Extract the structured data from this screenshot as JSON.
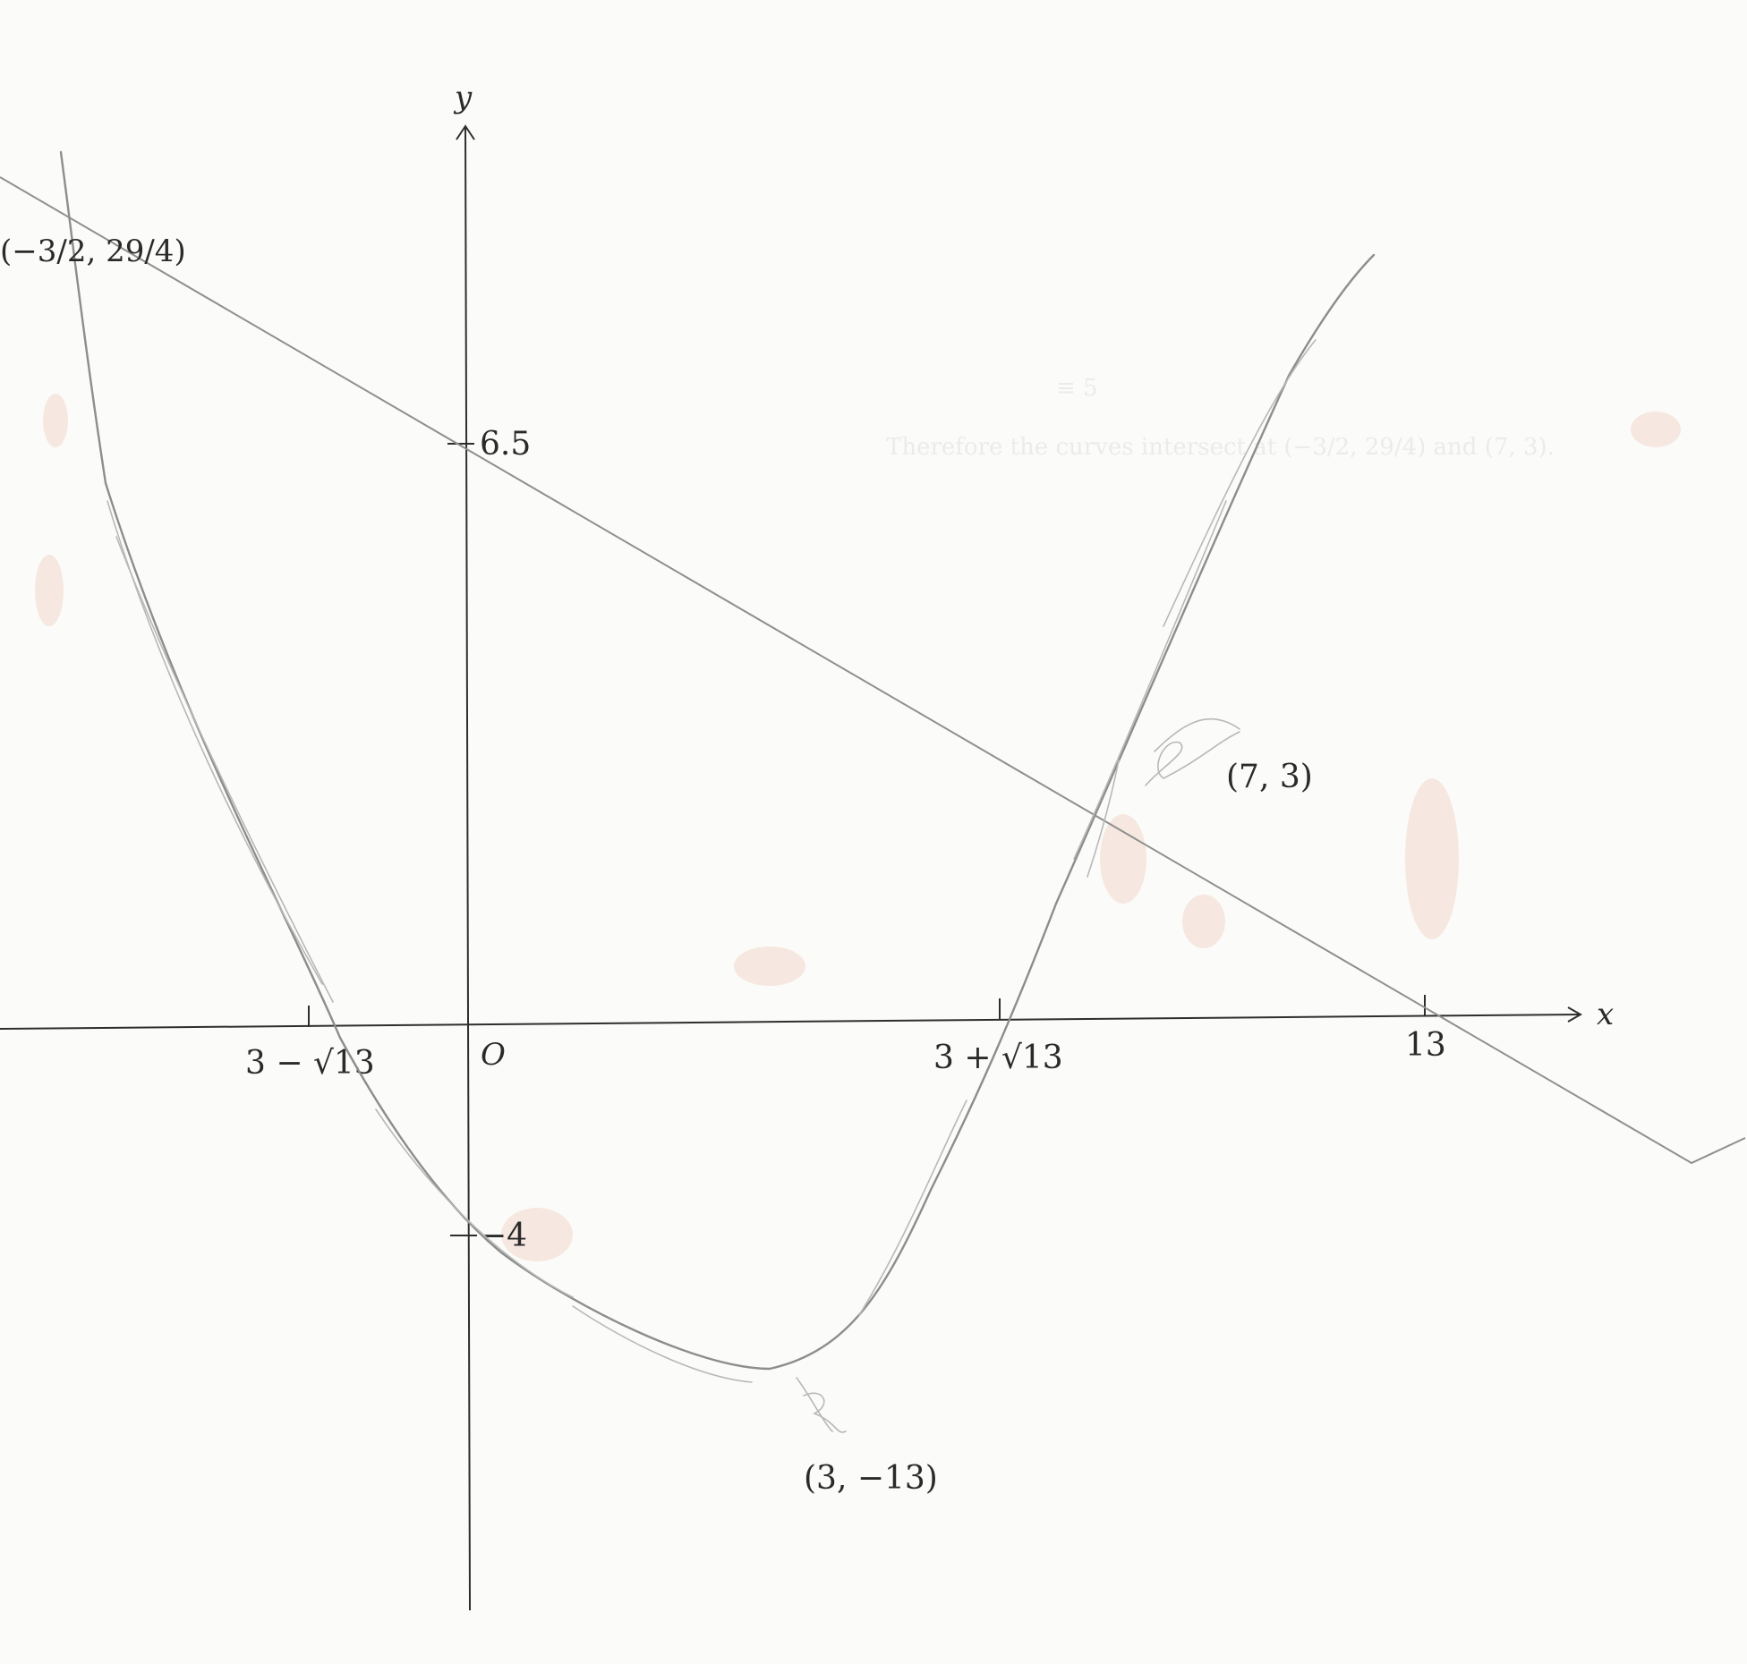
{
  "axes": {
    "x_label": "x",
    "y_label": "y",
    "origin_label": "O"
  },
  "x_ticks": [
    "3 − √13",
    "3 + √13",
    "13"
  ],
  "y_ticks": [
    "6.5",
    "−4"
  ],
  "points": {
    "line_parabola_left": "(−3/2, 29/4)",
    "line_parabola_right": "(7, 3)",
    "vertex": "(3, −13)"
  },
  "ghost_text": [
    "≡ 5",
    "Therefore the curves intersect at (−3/2, 29/4) and (7, 3)."
  ],
  "colors": {
    "curve": "#8d8d8d",
    "axes": "#2e2e2e",
    "smudge": "#e4a48a"
  }
}
